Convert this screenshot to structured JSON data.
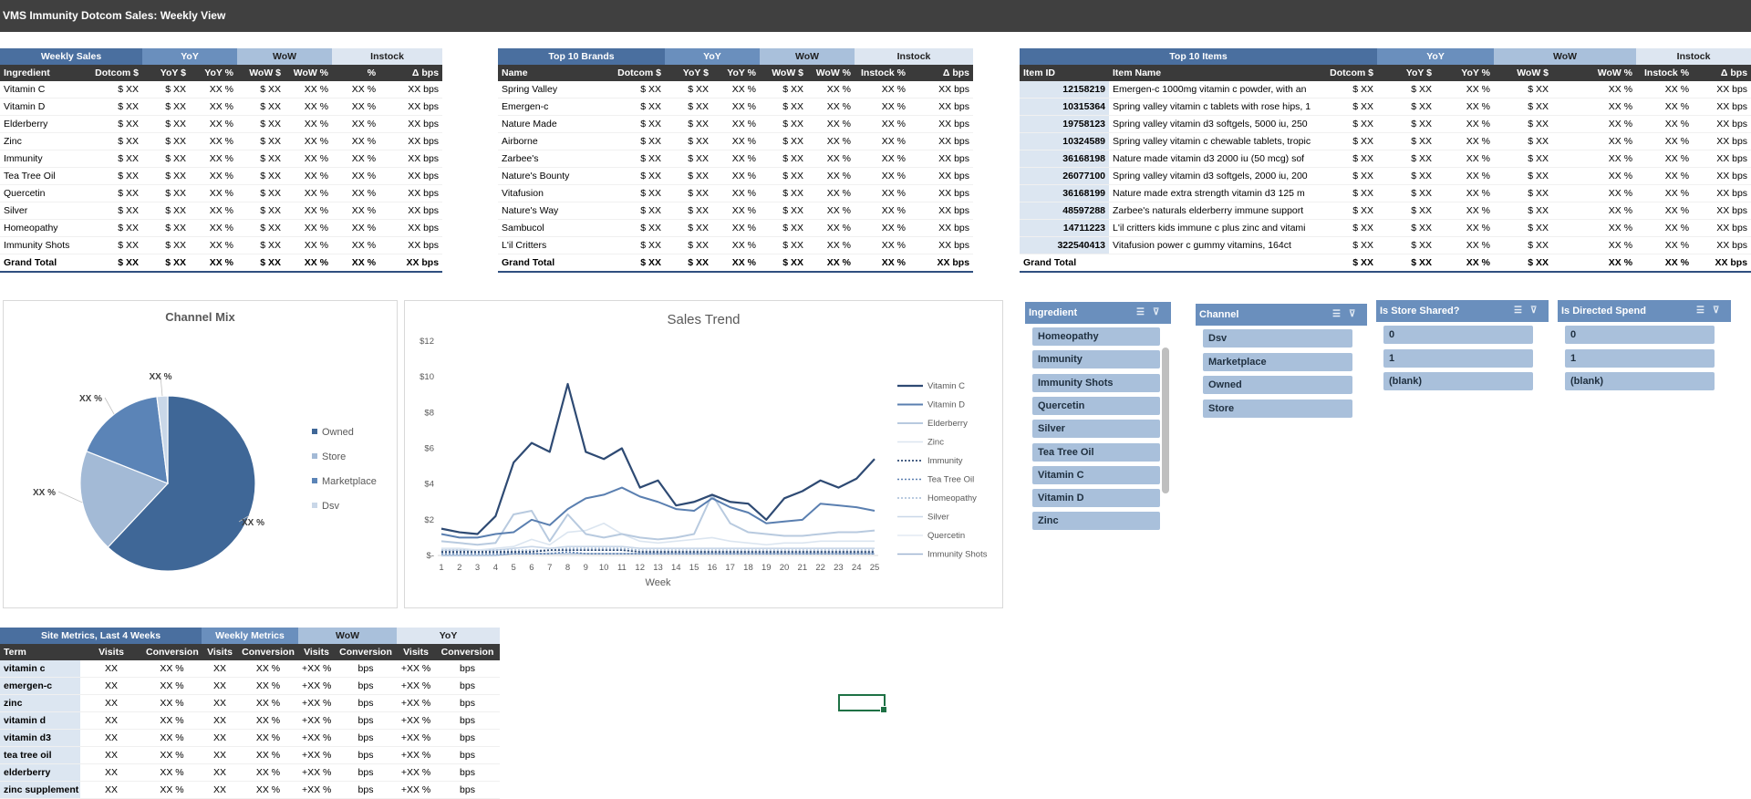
{
  "title": "VMS Immunity Dotcom Sales: Weekly View",
  "weekly_sales": {
    "groups": [
      "Weekly Sales",
      "YoY",
      "WoW",
      "Instock"
    ],
    "headers": [
      "Ingredient",
      "Dotcom $",
      "YoY $",
      "YoY %",
      "WoW $",
      "WoW %",
      "%",
      "Δ bps"
    ],
    "rows": [
      [
        "Vitamin C",
        "$ XX",
        "$ XX",
        "XX %",
        "$ XX",
        "XX %",
        "XX %",
        "XX bps"
      ],
      [
        "Vitamin D",
        "$ XX",
        "$ XX",
        "XX %",
        "$ XX",
        "XX %",
        "XX %",
        "XX bps"
      ],
      [
        "Elderberry",
        "$ XX",
        "$ XX",
        "XX %",
        "$ XX",
        "XX %",
        "XX %",
        "XX bps"
      ],
      [
        "Zinc",
        "$ XX",
        "$ XX",
        "XX %",
        "$ XX",
        "XX %",
        "XX %",
        "XX bps"
      ],
      [
        "Immunity",
        "$ XX",
        "$ XX",
        "XX %",
        "$ XX",
        "XX %",
        "XX %",
        "XX bps"
      ],
      [
        "Tea Tree Oil",
        "$ XX",
        "$ XX",
        "XX %",
        "$ XX",
        "XX %",
        "XX %",
        "XX bps"
      ],
      [
        "Quercetin",
        "$ XX",
        "$ XX",
        "XX %",
        "$ XX",
        "XX %",
        "XX %",
        "XX bps"
      ],
      [
        "Silver",
        "$ XX",
        "$ XX",
        "XX %",
        "$ XX",
        "XX %",
        "XX %",
        "XX bps"
      ],
      [
        "Homeopathy",
        "$ XX",
        "$ XX",
        "XX %",
        "$ XX",
        "XX %",
        "XX %",
        "XX bps"
      ],
      [
        "Immunity Shots",
        "$ XX",
        "$ XX",
        "XX %",
        "$ XX",
        "XX %",
        "XX %",
        "XX bps"
      ]
    ],
    "total": [
      "Grand Total",
      "$ XX",
      "$ XX",
      "XX %",
      "$ XX",
      "XX %",
      "XX %",
      "XX bps"
    ]
  },
  "top_brands": {
    "groups": [
      "Top 10 Brands",
      "YoY",
      "WoW",
      "Instock"
    ],
    "headers": [
      "Name",
      "Dotcom $",
      "YoY $",
      "YoY %",
      "WoW $",
      "WoW %",
      "Instock %",
      "Δ bps"
    ],
    "rows": [
      [
        "Spring Valley",
        "$ XX",
        "$ XX",
        "XX %",
        "$ XX",
        "XX %",
        "XX %",
        "XX bps"
      ],
      [
        "Emergen-c",
        "$ XX",
        "$ XX",
        "XX %",
        "$ XX",
        "XX %",
        "XX %",
        "XX bps"
      ],
      [
        "Nature Made",
        "$ XX",
        "$ XX",
        "XX %",
        "$ XX",
        "XX %",
        "XX %",
        "XX bps"
      ],
      [
        "Airborne",
        "$ XX",
        "$ XX",
        "XX %",
        "$ XX",
        "XX %",
        "XX %",
        "XX bps"
      ],
      [
        "Zarbee's",
        "$ XX",
        "$ XX",
        "XX %",
        "$ XX",
        "XX %",
        "XX %",
        "XX bps"
      ],
      [
        "Nature's Bounty",
        "$ XX",
        "$ XX",
        "XX %",
        "$ XX",
        "XX %",
        "XX %",
        "XX bps"
      ],
      [
        "Vitafusion",
        "$ XX",
        "$ XX",
        "XX %",
        "$ XX",
        "XX %",
        "XX %",
        "XX bps"
      ],
      [
        "Nature's Way",
        "$ XX",
        "$ XX",
        "XX %",
        "$ XX",
        "XX %",
        "XX %",
        "XX bps"
      ],
      [
        "Sambucol",
        "$ XX",
        "$ XX",
        "XX %",
        "$ XX",
        "XX %",
        "XX %",
        "XX bps"
      ],
      [
        "L'il Critters",
        "$ XX",
        "$ XX",
        "XX %",
        "$ XX",
        "XX %",
        "XX %",
        "XX bps"
      ]
    ],
    "total": [
      "Grand Total",
      "$ XX",
      "$ XX",
      "XX %",
      "$ XX",
      "XX %",
      "XX %",
      "XX bps"
    ]
  },
  "top_items": {
    "groups": [
      "Top 10 Items",
      "YoY",
      "WoW",
      "Instock"
    ],
    "headers": [
      "Item ID",
      "Item Name",
      "Dotcom $",
      "YoY $",
      "YoY %",
      "WoW $",
      "WoW %",
      "Instock %",
      "Δ bps"
    ],
    "rows": [
      [
        "12158219",
        "Emergen-c 1000mg vitamin c powder, with an",
        "$ XX",
        "$ XX",
        "XX %",
        "$ XX",
        "XX %",
        "XX %",
        "XX bps"
      ],
      [
        "10315364",
        "Spring valley vitamin c tablets with rose hips, 1",
        "$ XX",
        "$ XX",
        "XX %",
        "$ XX",
        "XX %",
        "XX %",
        "XX bps"
      ],
      [
        "19758123",
        "Spring valley vitamin d3 softgels, 5000 iu, 250",
        "$ XX",
        "$ XX",
        "XX %",
        "$ XX",
        "XX %",
        "XX %",
        "XX bps"
      ],
      [
        "10324589",
        "Spring valley vitamin c chewable tablets, tropic",
        "$ XX",
        "$ XX",
        "XX %",
        "$ XX",
        "XX %",
        "XX %",
        "XX bps"
      ],
      [
        "36168198",
        "Nature made vitamin d3 2000 iu (50 mcg) sof",
        "$ XX",
        "$ XX",
        "XX %",
        "$ XX",
        "XX %",
        "XX %",
        "XX bps"
      ],
      [
        "26077100",
        "Spring valley vitamin d3 softgels, 2000 iu, 200",
        "$ XX",
        "$ XX",
        "XX %",
        "$ XX",
        "XX %",
        "XX %",
        "XX bps"
      ],
      [
        "36168199",
        "Nature made extra strength vitamin d3 125 m",
        "$ XX",
        "$ XX",
        "XX %",
        "$ XX",
        "XX %",
        "XX %",
        "XX bps"
      ],
      [
        "48597288",
        "Zarbee's naturals elderberry immune support",
        "$ XX",
        "$ XX",
        "XX %",
        "$ XX",
        "XX %",
        "XX %",
        "XX bps"
      ],
      [
        "14711223",
        "L'il critters kids immune c plus zinc and vitami",
        "$ XX",
        "$ XX",
        "XX %",
        "$ XX",
        "XX %",
        "XX %",
        "XX bps"
      ],
      [
        "322540413",
        "Vitafusion power c gummy vitamins, 164ct",
        "$ XX",
        "$ XX",
        "XX %",
        "$ XX",
        "XX %",
        "XX %",
        "XX bps"
      ]
    ],
    "total": [
      "Grand Total",
      "",
      "$ XX",
      "$ XX",
      "XX %",
      "$ XX",
      "XX %",
      "XX %",
      "XX bps"
    ]
  },
  "site_metrics": {
    "groups": [
      "Site Metrics, Last 4 Weeks",
      "Weekly Metrics",
      "WoW",
      "YoY"
    ],
    "headers": [
      "Term",
      "Visits",
      "Conversion",
      "Visits",
      "Conversion",
      "Visits",
      "Conversion",
      "Visits",
      "Conversion"
    ],
    "rows": [
      [
        "vitamin c",
        "XX",
        "XX %",
        "XX",
        "XX %",
        "+XX %",
        "bps",
        "+XX %",
        "bps"
      ],
      [
        "emergen-c",
        "XX",
        "XX %",
        "XX",
        "XX %",
        "+XX %",
        "bps",
        "+XX %",
        "bps"
      ],
      [
        "zinc",
        "XX",
        "XX %",
        "XX",
        "XX %",
        "+XX %",
        "bps",
        "+XX %",
        "bps"
      ],
      [
        "vitamin d",
        "XX",
        "XX %",
        "XX",
        "XX %",
        "+XX %",
        "bps",
        "+XX %",
        "bps"
      ],
      [
        "vitamin d3",
        "XX",
        "XX %",
        "XX",
        "XX %",
        "+XX %",
        "bps",
        "+XX %",
        "bps"
      ],
      [
        "tea tree oil",
        "XX",
        "XX %",
        "XX",
        "XX %",
        "+XX %",
        "bps",
        "+XX %",
        "bps"
      ],
      [
        "elderberry",
        "XX",
        "XX %",
        "XX",
        "XX %",
        "+XX %",
        "bps",
        "+XX %",
        "bps"
      ],
      [
        "zinc supplement",
        "XX",
        "XX %",
        "XX",
        "XX %",
        "+XX %",
        "bps",
        "+XX %",
        "bps"
      ]
    ]
  },
  "slicers": [
    {
      "title": "Ingredient",
      "items": [
        "Homeopathy",
        "Immunity",
        "Immunity Shots",
        "Quercetin",
        "Silver",
        "Tea Tree Oil",
        "Vitamin  C",
        "Vitamin  D",
        "Zinc"
      ]
    },
    {
      "title": "Channel",
      "items": [
        "Dsv",
        "Marketplace",
        "Owned",
        "Store"
      ]
    },
    {
      "title": "Is Store Shared?",
      "items": [
        "0",
        "1",
        "(blank)"
      ]
    },
    {
      "title": "Is Directed Spend",
      "items": [
        "0",
        "1",
        "(blank)"
      ]
    }
  ],
  "chart_data": [
    {
      "type": "pie",
      "title": "Channel Mix",
      "categories": [
        "Owned",
        "Store",
        "Marketplace",
        "Dsv"
      ],
      "values": [
        62,
        19,
        17,
        2
      ],
      "data_labels": [
        "XX %",
        "XX %",
        "XX %",
        "XX %"
      ],
      "colors": [
        "#3f6797",
        "#a3bad6",
        "#5b84b7",
        "#c9d7e8"
      ],
      "legend": "right"
    },
    {
      "type": "line",
      "title": "Sales Trend",
      "xlabel": "Week",
      "ylabel": "",
      "x": [
        1,
        2,
        3,
        4,
        5,
        6,
        7,
        8,
        9,
        10,
        11,
        12,
        13,
        14,
        15,
        16,
        17,
        18,
        19,
        20,
        21,
        22,
        23,
        24,
        25
      ],
      "ylim": [
        0,
        12
      ],
      "yticks": [
        "$-",
        "$2",
        "$4",
        "$6",
        "$8",
        "$10",
        "$12"
      ],
      "legend": "right",
      "series": [
        {
          "name": "Vitamin C",
          "color": "#2e4a73",
          "dash": "",
          "width": 2.2,
          "values": [
            1.5,
            1.3,
            1.2,
            2.2,
            5.2,
            6.3,
            5.8,
            9.6,
            5.8,
            5.4,
            6.0,
            3.8,
            4.2,
            2.8,
            3.0,
            3.4,
            3.0,
            2.9,
            2.0,
            3.2,
            3.6,
            4.2,
            3.8,
            4.3,
            5.4
          ]
        },
        {
          "name": "Vitamin D",
          "color": "#5a7fb0",
          "dash": "",
          "width": 2.0,
          "values": [
            1.2,
            1.0,
            1.0,
            1.2,
            1.3,
            2.0,
            1.7,
            2.6,
            3.2,
            3.4,
            3.8,
            3.3,
            3.0,
            2.6,
            2.5,
            3.2,
            2.7,
            2.4,
            1.8,
            1.9,
            2.0,
            2.9,
            2.8,
            2.7,
            2.5
          ]
        },
        {
          "name": "Elderberry",
          "color": "#b8cadf",
          "dash": "",
          "width": 2.0,
          "values": [
            0.8,
            0.7,
            0.6,
            0.7,
            2.3,
            2.5,
            0.8,
            2.3,
            1.2,
            1.0,
            1.2,
            1.0,
            0.9,
            1.0,
            1.2,
            3.4,
            1.8,
            1.3,
            1.2,
            1.1,
            1.1,
            1.2,
            1.3,
            1.3,
            1.4
          ]
        },
        {
          "name": "Zinc",
          "color": "#dbe5f0",
          "dash": "",
          "width": 1.6,
          "values": [
            0.4,
            0.4,
            0.3,
            0.4,
            0.5,
            0.9,
            0.6,
            1.3,
            1.4,
            1.8,
            1.2,
            0.8,
            0.7,
            0.8,
            0.9,
            1.0,
            0.8,
            0.7,
            0.6,
            0.7,
            0.7,
            0.8,
            0.8,
            0.8,
            0.8
          ]
        },
        {
          "name": "Immunity",
          "color": "#2e4a73",
          "dash": "2,2",
          "width": 1.8,
          "values": [
            0.2,
            0.2,
            0.2,
            0.2,
            0.2,
            0.2,
            0.3,
            0.3,
            0.3,
            0.3,
            0.3,
            0.2,
            0.2,
            0.2,
            0.2,
            0.2,
            0.2,
            0.2,
            0.2,
            0.2,
            0.2,
            0.2,
            0.2,
            0.2,
            0.2
          ]
        },
        {
          "name": "Tea Tree Oil",
          "color": "#5a7fb0",
          "dash": "2,2",
          "width": 1.6,
          "values": [
            0.1,
            0.1,
            0.1,
            0.1,
            0.1,
            0.1,
            0.1,
            0.2,
            0.1,
            0.1,
            0.1,
            0.1,
            0.1,
            0.1,
            0.1,
            0.1,
            0.1,
            0.1,
            0.1,
            0.1,
            0.1,
            0.1,
            0.1,
            0.1,
            0.1
          ]
        },
        {
          "name": "Homeopathy",
          "color": "#a3bad6",
          "dash": "2,2",
          "width": 1.6,
          "values": [
            0.3,
            0.3,
            0.3,
            0.3,
            0.3,
            0.3,
            0.3,
            0.4,
            0.4,
            0.4,
            0.4,
            0.3,
            0.3,
            0.3,
            0.3,
            0.3,
            0.3,
            0.3,
            0.3,
            0.3,
            0.3,
            0.3,
            0.3,
            0.3,
            0.3
          ]
        },
        {
          "name": "Silver",
          "color": "#c9d7e8",
          "dash": "",
          "width": 1.6,
          "values": [
            0.3,
            0.3,
            0.3,
            0.3,
            0.4,
            0.5,
            0.4,
            0.5,
            0.5,
            0.5,
            0.5,
            0.4,
            0.4,
            0.4,
            0.4,
            0.4,
            0.4,
            0.4,
            0.4,
            0.4,
            0.4,
            0.4,
            0.4,
            0.4,
            0.4
          ]
        },
        {
          "name": "Quercetin",
          "color": "#e3eaf3",
          "dash": "",
          "width": 1.4,
          "values": [
            0.1,
            0.1,
            0.1,
            0.1,
            0.2,
            0.3,
            0.2,
            0.3,
            0.3,
            0.3,
            0.3,
            0.2,
            0.2,
            0.2,
            0.2,
            0.2,
            0.2,
            0.2,
            0.2,
            0.2,
            0.2,
            0.2,
            0.2,
            0.2,
            0.2
          ]
        },
        {
          "name": "Immunity Shots",
          "color": "#9fb5d2",
          "dash": "",
          "width": 1.4,
          "values": [
            0.0,
            0.0,
            0.0,
            0.0,
            0.1,
            0.1,
            0.1,
            0.1,
            0.1,
            0.1,
            0.1,
            0.1,
            0.1,
            0.1,
            0.1,
            0.1,
            0.1,
            0.1,
            0.1,
            0.1,
            0.1,
            0.1,
            0.1,
            0.1,
            0.1
          ]
        }
      ]
    }
  ]
}
